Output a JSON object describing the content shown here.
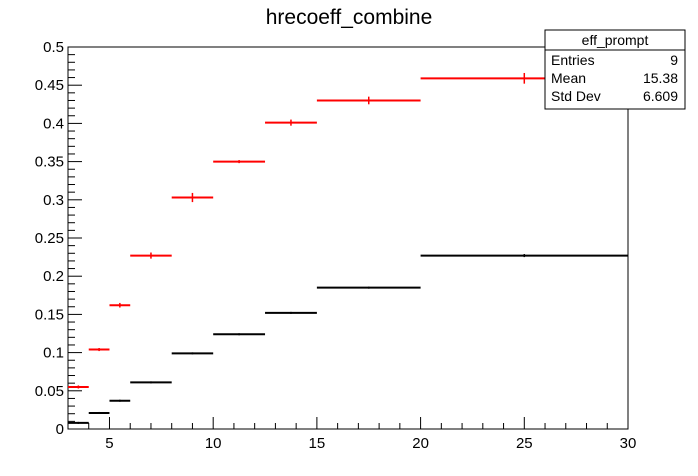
{
  "chart_data": {
    "type": "scatter",
    "title": "hrecoeff_combine",
    "xlabel": "",
    "ylabel": "",
    "xlim": [
      3,
      30
    ],
    "ylim": [
      0,
      0.5
    ],
    "x_ticks": [
      "5",
      "10",
      "15",
      "20",
      "25",
      "30"
    ],
    "y_ticks": [
      "0",
      "0.05",
      "0.1",
      "0.15",
      "0.2",
      "0.25",
      "0.3",
      "0.35",
      "0.4",
      "0.45",
      "0.5"
    ],
    "grid": false,
    "series": [
      {
        "color": "#ff0000",
        "points": [
          {
            "xlo": 3,
            "xhi": 4,
            "y": 0.055,
            "yerr": 0.002
          },
          {
            "xlo": 4,
            "xhi": 5,
            "y": 0.104,
            "yerr": 0.002
          },
          {
            "xlo": 5,
            "xhi": 6,
            "y": 0.162,
            "yerr": 0.003
          },
          {
            "xlo": 6,
            "xhi": 8,
            "y": 0.227,
            "yerr": 0.004
          },
          {
            "xlo": 8,
            "xhi": 10,
            "y": 0.303,
            "yerr": 0.006
          },
          {
            "xlo": 10,
            "xhi": 12.5,
            "y": 0.35,
            "yerr": 0.002
          },
          {
            "xlo": 12.5,
            "xhi": 15,
            "y": 0.401,
            "yerr": 0.004
          },
          {
            "xlo": 15,
            "xhi": 20,
            "y": 0.43,
            "yerr": 0.005
          },
          {
            "xlo": 20,
            "xhi": 30,
            "y": 0.459,
            "yerr": 0.007
          }
        ]
      },
      {
        "color": "#000000",
        "points": [
          {
            "xlo": 3,
            "xhi": 4,
            "y": 0.008,
            "yerr": 0.001
          },
          {
            "xlo": 4,
            "xhi": 5,
            "y": 0.021,
            "yerr": 0.001
          },
          {
            "xlo": 5,
            "xhi": 6,
            "y": 0.037,
            "yerr": 0.001
          },
          {
            "xlo": 6,
            "xhi": 8,
            "y": 0.061,
            "yerr": 0.001
          },
          {
            "xlo": 8,
            "xhi": 10,
            "y": 0.099,
            "yerr": 0.001
          },
          {
            "xlo": 10,
            "xhi": 12.5,
            "y": 0.124,
            "yerr": 0.001
          },
          {
            "xlo": 12.5,
            "xhi": 15,
            "y": 0.152,
            "yerr": 0.001
          },
          {
            "xlo": 15,
            "xhi": 20,
            "y": 0.185,
            "yerr": 0.001
          },
          {
            "xlo": 20,
            "xhi": 30,
            "y": 0.227,
            "yerr": 0.002
          }
        ]
      }
    ],
    "stats_box": {
      "name": "eff_prompt",
      "rows": [
        {
          "label": "Entries",
          "value": "9"
        },
        {
          "label": "Mean",
          "value": "15.38"
        },
        {
          "label": "Std Dev",
          "value": "6.609"
        }
      ],
      "placement": "top-right"
    }
  }
}
